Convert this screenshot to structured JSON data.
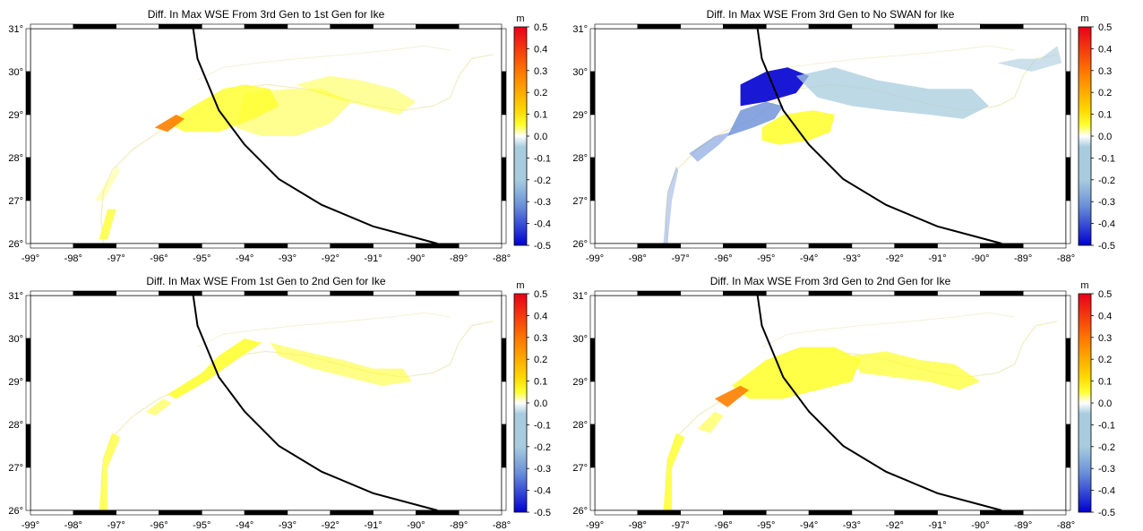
{
  "panels": [
    {
      "title": "Diff. In Max WSE From 3rd Gen to 1st Gen for Ike",
      "field": "ike_3rd_minus_1st"
    },
    {
      "title": "Diff. In Max WSE From 3rd Gen to No SWAN for Ike",
      "field": "ike_3rd_minus_noswan"
    },
    {
      "title": "Diff. In Max WSE From 1st Gen to 2nd Gen for Ike",
      "field": "ike_1st_minus_2nd"
    },
    {
      "title": "Diff. In Max WSE From 3rd Gen to 2nd Gen for Ike",
      "field": "ike_3rd_minus_2nd"
    }
  ],
  "map": {
    "lon_labels": [
      "-99°",
      "-98°",
      "-97°",
      "-96°",
      "-95°",
      "-94°",
      "-93°",
      "-92°",
      "-91°",
      "-90°",
      "-89°",
      "-88°"
    ],
    "lat_labels": [
      "31°",
      "30°",
      "29°",
      "28°",
      "27°",
      "26°"
    ],
    "lon_range": [
      -99,
      -88
    ],
    "lat_range": [
      26,
      31
    ],
    "track": [
      [
        -95.2,
        31.0
      ],
      [
        -95.1,
        30.3
      ],
      [
        -94.6,
        29.1
      ],
      [
        -94.0,
        28.3
      ],
      [
        -93.2,
        27.5
      ],
      [
        -92.2,
        26.9
      ],
      [
        -91.0,
        26.4
      ],
      [
        -89.5,
        26.0
      ]
    ],
    "track_color": "#000000"
  },
  "colorbar": {
    "unit": "m",
    "labels": [
      "0.5",
      "0.4",
      "0.3",
      "0.2",
      "0.1",
      "0.0",
      "-0.1",
      "-0.2",
      "-0.3",
      "-0.4",
      "-0.5"
    ],
    "range": [
      -0.5,
      0.5
    ],
    "colors": {
      "max": "#e8001a",
      "high": "#ff8000",
      "mid_high": "#ffd700",
      "low_pos": "#ffff33",
      "zero": "#ffffff",
      "low_neg": "#a8ccdd",
      "mid_neg": "#6a8fd8",
      "min": "#0000d0"
    }
  }
}
